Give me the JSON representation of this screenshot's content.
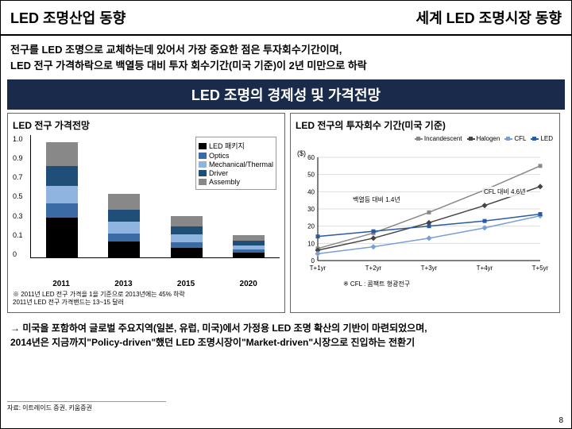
{
  "header": {
    "left": "LED 조명산업 동향",
    "right": "세계 LED 조명시장 동향"
  },
  "description": "전구를 LED 조명으로 교체하는데 있어서 가장 중요한 점은 투자회수기간이며,\nLED 전구 가격하락으로 백열등 대비 투자 회수기간(미국 기준)이 2년 미만으로 하락",
  "section_title": "LED 조명의  경제성 및 가격전망",
  "bar_chart": {
    "title": "LED 전구 가격전망",
    "y_ticks": [
      "1.0",
      "0.9",
      "0.7",
      "0.5",
      "0.3",
      "0.1",
      "0"
    ],
    "categories": [
      "2011",
      "2013",
      "2015",
      "2020"
    ],
    "legend": [
      {
        "label": "LED 패키지",
        "color": "#000000"
      },
      {
        "label": "Optics",
        "color": "#3a6ba5"
      },
      {
        "label": "Mechanical/Thermal",
        "color": "#8fb4e0"
      },
      {
        "label": "Driver",
        "color": "#1f4e79"
      },
      {
        "label": "Assembly",
        "color": "#888888"
      }
    ],
    "stacks": [
      {
        "segments": [
          {
            "h": 50,
            "c": "#000000"
          },
          {
            "h": 18,
            "c": "#3a6ba5"
          },
          {
            "h": 22,
            "c": "#8fb4e0"
          },
          {
            "h": 25,
            "c": "#1f4e79"
          },
          {
            "h": 30,
            "c": "#888888"
          }
        ]
      },
      {
        "segments": [
          {
            "h": 20,
            "c": "#000000"
          },
          {
            "h": 10,
            "c": "#3a6ba5"
          },
          {
            "h": 15,
            "c": "#8fb4e0"
          },
          {
            "h": 15,
            "c": "#1f4e79"
          },
          {
            "h": 20,
            "c": "#888888"
          }
        ]
      },
      {
        "segments": [
          {
            "h": 12,
            "c": "#000000"
          },
          {
            "h": 7,
            "c": "#3a6ba5"
          },
          {
            "h": 10,
            "c": "#8fb4e0"
          },
          {
            "h": 10,
            "c": "#1f4e79"
          },
          {
            "h": 13,
            "c": "#888888"
          }
        ]
      },
      {
        "segments": [
          {
            "h": 6,
            "c": "#000000"
          },
          {
            "h": 4,
            "c": "#3a6ba5"
          },
          {
            "h": 5,
            "c": "#8fb4e0"
          },
          {
            "h": 6,
            "c": "#1f4e79"
          },
          {
            "h": 7,
            "c": "#888888"
          }
        ]
      }
    ],
    "note": "※ 2011년 LED 전구 가격을 1을 기준으로 2013년에는 45% 하락\n    2011년 LED 전구 가격밴드는 13~15 달러"
  },
  "line_chart": {
    "title": "LED 전구의 투자회수 기간(미국 기준)",
    "y_label": "($)",
    "y_ticks": [
      "60",
      "50",
      "40",
      "30",
      "20",
      "10",
      "0"
    ],
    "x_ticks": [
      "T+1yr",
      "T+2yr",
      "T+3yr",
      "T+4yr",
      "T+5yr"
    ],
    "legend": [
      {
        "label": "Incandescent",
        "color": "#888888",
        "marker": "square"
      },
      {
        "label": "Halogen",
        "color": "#444444",
        "marker": "diamond"
      },
      {
        "label": "CFL",
        "color": "#7a9fd4",
        "marker": "diamond"
      },
      {
        "label": "LED",
        "color": "#2a5aa0",
        "marker": "triangle"
      }
    ],
    "series": {
      "Incandescent": [
        7,
        16,
        28,
        41,
        55
      ],
      "Halogen": [
        6,
        13,
        22,
        32,
        43
      ],
      "CFL": [
        4,
        8,
        13,
        19,
        26
      ],
      "LED": [
        14,
        17,
        20,
        23,
        27
      ]
    },
    "annotations": [
      {
        "text": "백열등 대비 1.4년",
        "x": 70,
        "y": 75
      },
      {
        "text": "CFL 대비 4.6년",
        "x": 235,
        "y": 65
      }
    ],
    "note": "※ CFL : 콤팩트 형광전구"
  },
  "conclusion": "→ 미국을 포함하여 글로벌 주요지역(일본, 유럽, 미국)에서 가정용 LED 조명 확산의 기반이 마련되었으며,\n    2014년은 지금까지\"Policy-driven\"했던 LED 조명시장이\"Market-driven\"시장으로 진입하는 전환기",
  "source": "자료: 이트레이드 증권, 키움증권",
  "page": "8"
}
